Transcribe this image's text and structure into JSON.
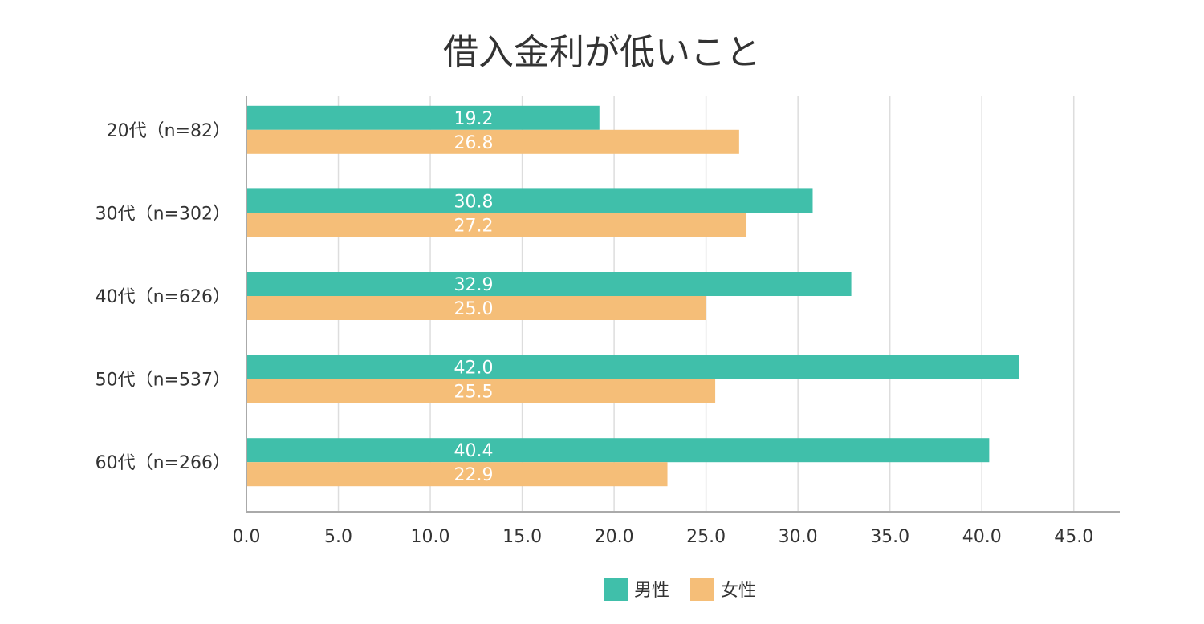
{
  "chart_data": {
    "type": "bar",
    "orientation": "horizontal",
    "title": "借入金利が低いこと",
    "xlabel": "",
    "ylabel": "",
    "categories": [
      "20代（n=82）",
      "30代（n=302）",
      "40代（n=626）",
      "50代（n=537）",
      "60代（n=266）"
    ],
    "series": [
      {
        "name": "男性",
        "color": "#40BFAA",
        "values": [
          19.2,
          30.8,
          32.9,
          42.0,
          40.4
        ],
        "labels": [
          "19.2",
          "30.8",
          "32.9",
          "42.0",
          "40.4"
        ]
      },
      {
        "name": "女性",
        "color": "#F5BE78",
        "values": [
          26.8,
          27.2,
          25.0,
          25.5,
          22.9
        ],
        "labels": [
          "26.8",
          "27.2",
          "25.0",
          "25.5",
          "22.9"
        ]
      }
    ],
    "xlim": [
      0,
      47.5
    ],
    "xticks": [
      "0.0",
      "5.0",
      "10.0",
      "15.0",
      "20.0",
      "25.0",
      "30.0",
      "35.0",
      "40.0",
      "45.0"
    ],
    "grid": true,
    "legend_position": "bottom",
    "data_label_color": "#FFFFFF",
    "grid_color": "#DDDDDD",
    "axis_color": "#AAAAAA"
  }
}
